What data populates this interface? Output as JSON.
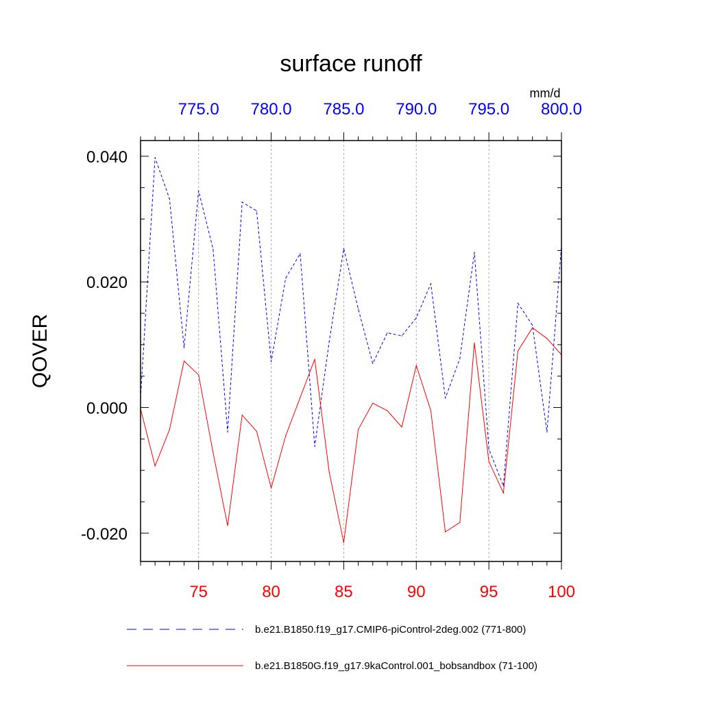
{
  "chart_data": {
    "type": "line",
    "title": "surface runoff",
    "ylabel": "QOVER",
    "units": "mm/d",
    "ylim": [
      -0.0245,
      0.0425
    ],
    "y_ticks": [
      -0.02,
      0.0,
      0.02,
      0.04
    ],
    "y_tick_labels": [
      "-0.020",
      "0.000",
      "0.020",
      "0.040"
    ],
    "y_minor_step": 0.005,
    "top_axis": {
      "xlim": [
        771,
        800
      ],
      "ticks": [
        775,
        780,
        785,
        790,
        795,
        800
      ],
      "tick_labels": [
        "775.0",
        "780.0",
        "785.0",
        "790.0",
        "795.0",
        "800.0"
      ],
      "color": "#0000ff"
    },
    "bottom_axis": {
      "xlim": [
        71,
        100
      ],
      "ticks": [
        75,
        80,
        85,
        90,
        95,
        100
      ],
      "tick_labels": [
        "75",
        "80",
        "85",
        "90",
        "95",
        "100"
      ],
      "color": "#ff0000"
    },
    "grid": "vertical dashed at major ticks",
    "series": [
      {
        "name": "b.e21.B1850.f19_g17.CMIP6-piControl-2deg.002 (771-800)",
        "color": "#0000ff",
        "style": "dashed",
        "axis": "top",
        "x": [
          771,
          772,
          773,
          774,
          775,
          776,
          777,
          778,
          779,
          780,
          781,
          782,
          783,
          784,
          785,
          786,
          787,
          788,
          789,
          790,
          791,
          792,
          793,
          794,
          795,
          796,
          797,
          798,
          799,
          800
        ],
        "values": [
          0.0015,
          0.0398,
          0.0332,
          0.0095,
          0.0345,
          0.0252,
          -0.0039,
          0.0327,
          0.0313,
          0.0073,
          0.0206,
          0.0245,
          -0.0062,
          0.0105,
          0.0253,
          0.0157,
          0.007,
          0.0119,
          0.0114,
          0.0143,
          0.0197,
          0.0015,
          0.0078,
          0.0247,
          -0.0066,
          -0.0125,
          0.0166,
          0.0131,
          -0.0039,
          0.0258
        ]
      },
      {
        "name": "b.e21.B1850G.f19_g17.9kaControl.001_bobsandbox (71-100)",
        "color": "#ff0000",
        "style": "solid",
        "axis": "bottom",
        "x": [
          71,
          72,
          73,
          74,
          75,
          76,
          77,
          78,
          79,
          80,
          81,
          82,
          83,
          84,
          85,
          86,
          87,
          88,
          89,
          90,
          91,
          92,
          93,
          94,
          95,
          96,
          97,
          98,
          99,
          100
        ],
        "values": [
          -0.0002,
          -0.0093,
          -0.0035,
          0.0074,
          0.0052,
          -0.0072,
          -0.0188,
          -0.0012,
          -0.0038,
          -0.0128,
          -0.0045,
          0.0016,
          0.0077,
          -0.0103,
          -0.0215,
          -0.0035,
          0.0007,
          -0.0005,
          -0.0031,
          0.0067,
          -0.0005,
          -0.0198,
          -0.0183,
          0.0103,
          -0.0086,
          -0.0136,
          0.009,
          0.0127,
          0.011,
          0.0084
        ]
      }
    ],
    "legend": [
      {
        "label": "b.e21.B1850.f19_g17.CMIP6-piControl-2deg.002 (771-800)",
        "color": "#0000ff",
        "style": "dashed"
      },
      {
        "label": "b.e21.B1850G.f19_g17.9kaControl.001_bobsandbox (71-100)",
        "color": "#ff0000",
        "style": "solid"
      }
    ]
  }
}
